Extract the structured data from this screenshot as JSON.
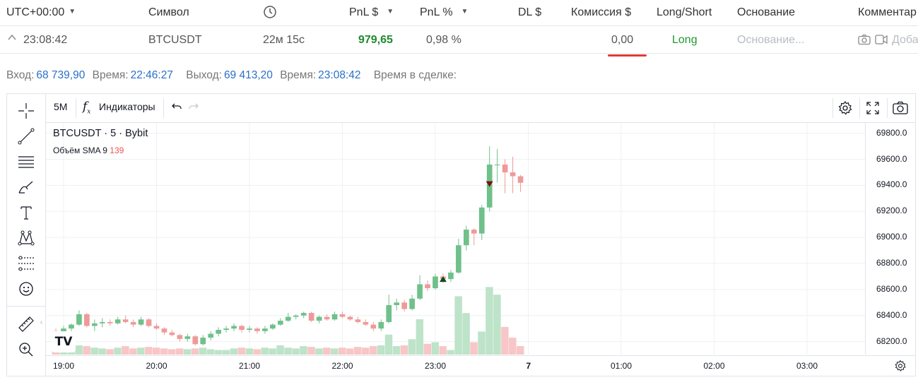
{
  "table": {
    "headers": {
      "time": "UTC+00:00",
      "symbol": "Символ",
      "pnl_usd": "PnL $",
      "pnl_pct": "PnL %",
      "dl": "DL $",
      "commission": "Комиссия $",
      "side": "Long/Short",
      "reason": "Основание",
      "comment": "Комментар"
    },
    "row": {
      "time": "23:08:42",
      "symbol": "BTCUSDT",
      "duration": "22м 15с",
      "pnl_usd": "979,65",
      "pnl_pct": "0,98 %",
      "commission": "0,00",
      "side": "Long",
      "reason_placeholder": "Основание...",
      "comment_placeholder": "Доба"
    }
  },
  "trade_info": {
    "entry_label": "Вход:",
    "entry_price": "68 739,90",
    "entry_time_label": "Время:",
    "entry_time": "22:46:27",
    "exit_label": "Выход:",
    "exit_price": "69 413,20",
    "exit_time_label": "Время:",
    "exit_time": "23:08:42",
    "duration_label": "Время в сделке:"
  },
  "chart_toolbar": {
    "interval": "5M",
    "indicators_label": "Индикаторы"
  },
  "legend": {
    "symbol": "BTCUSDT",
    "interval": "5",
    "exchange": "Bybit",
    "sep": "·",
    "volume_label": "Объём SMA 9",
    "volume_value": "139"
  },
  "colors": {
    "up": "#6fc08a",
    "down": "#ef9a9a",
    "vol_up": "#bde3c9",
    "vol_down": "#f8c6c6",
    "pnl_positive": "#1e8a2e",
    "long": "#1e9a2e",
    "accent_red": "#e53935",
    "info_value": "#2a6fc9"
  },
  "chart_data": {
    "type": "candlestick",
    "symbol": "BTCUSDT",
    "interval": "5",
    "exchange": "Bybit",
    "x_tick_labels": [
      "19:00",
      "20:00",
      "21:00",
      "22:00",
      "23:00",
      "7",
      "01:00",
      "02:00",
      "03:00"
    ],
    "y_tick_labels": [
      "69800.0",
      "69600.0",
      "69400.0",
      "69200.0",
      "69000.0",
      "68800.0",
      "68600.0",
      "68400.0",
      "68200.0"
    ],
    "ylim": [
      68100,
      69880
    ],
    "grid": true,
    "start_time": "18:55",
    "candles": [
      [
        68280,
        68300,
        68250,
        68270,
        40
      ],
      [
        68270,
        68320,
        68250,
        68300,
        30
      ],
      [
        68300,
        68340,
        68280,
        68330,
        35
      ],
      [
        68330,
        68440,
        68320,
        68410,
        60
      ],
      [
        68410,
        68420,
        68310,
        68320,
        55
      ],
      [
        68320,
        68370,
        68280,
        68340,
        45
      ],
      [
        68340,
        68380,
        68310,
        68350,
        40
      ],
      [
        68350,
        68370,
        68320,
        68340,
        35
      ],
      [
        68340,
        68390,
        68330,
        68370,
        45
      ],
      [
        68370,
        68400,
        68340,
        68350,
        55
      ],
      [
        68350,
        68370,
        68310,
        68330,
        40
      ],
      [
        68330,
        68390,
        68320,
        68370,
        45
      ],
      [
        68370,
        68380,
        68310,
        68320,
        50
      ],
      [
        68320,
        68340,
        68290,
        68300,
        45
      ],
      [
        68300,
        68310,
        68250,
        68270,
        40
      ],
      [
        68270,
        68290,
        68240,
        68250,
        35
      ],
      [
        68250,
        68260,
        68200,
        68220,
        40
      ],
      [
        68220,
        68260,
        68200,
        68240,
        35
      ],
      [
        68240,
        68250,
        68170,
        68180,
        40
      ],
      [
        68180,
        68250,
        68170,
        68230,
        45
      ],
      [
        68230,
        68280,
        68210,
        68260,
        35
      ],
      [
        68260,
        68310,
        68240,
        68290,
        30
      ],
      [
        68290,
        68320,
        68270,
        68300,
        30
      ],
      [
        68300,
        68340,
        68280,
        68320,
        40
      ],
      [
        68320,
        68330,
        68270,
        68290,
        45
      ],
      [
        68290,
        68320,
        68270,
        68300,
        40
      ],
      [
        68300,
        68310,
        68260,
        68280,
        35
      ],
      [
        68280,
        68320,
        68260,
        68300,
        45
      ],
      [
        68300,
        68340,
        68290,
        68330,
        40
      ],
      [
        68330,
        68380,
        68320,
        68360,
        60
      ],
      [
        68360,
        68420,
        68350,
        68390,
        45
      ],
      [
        68390,
        68410,
        68370,
        68400,
        40
      ],
      [
        68400,
        68430,
        68380,
        68420,
        55
      ],
      [
        68420,
        68430,
        68350,
        68360,
        50
      ],
      [
        68360,
        68400,
        68340,
        68390,
        40
      ],
      [
        68390,
        68410,
        68360,
        68370,
        45
      ],
      [
        68370,
        68430,
        68360,
        68410,
        40
      ],
      [
        68410,
        68430,
        68380,
        68390,
        45
      ],
      [
        68390,
        68400,
        68360,
        68370,
        40
      ],
      [
        68370,
        68390,
        68340,
        68350,
        50
      ],
      [
        68350,
        68370,
        68320,
        68330,
        45
      ],
      [
        68330,
        68350,
        68280,
        68300,
        55
      ],
      [
        68300,
        68370,
        68280,
        68350,
        60
      ],
      [
        68350,
        68560,
        68340,
        68480,
        130
      ],
      [
        68480,
        68530,
        68440,
        68500,
        55
      ],
      [
        68500,
        68520,
        68430,
        68450,
        60
      ],
      [
        68450,
        68560,
        68440,
        68530,
        100
      ],
      [
        68530,
        68710,
        68520,
        68640,
        230
      ],
      [
        68640,
        68670,
        68590,
        68610,
        70
      ],
      [
        68610,
        68720,
        68600,
        68700,
        80
      ],
      [
        68700,
        68720,
        68650,
        68680,
        55
      ],
      [
        68680,
        68750,
        68660,
        68730,
        30
      ],
      [
        68730,
        68990,
        68720,
        68940,
        380
      ],
      [
        68940,
        69090,
        68900,
        69060,
        270
      ],
      [
        69060,
        69070,
        68940,
        69030,
        80
      ],
      [
        69030,
        69250,
        68980,
        69230,
        150
      ],
      [
        69230,
        69700,
        69200,
        69560,
        440
      ],
      [
        69560,
        69680,
        69420,
        69560,
        390
      ],
      [
        69560,
        69600,
        69340,
        69500,
        180
      ],
      [
        69500,
        69620,
        69340,
        69470,
        110
      ],
      [
        69470,
        69480,
        69350,
        69420,
        55
      ]
    ],
    "markers": [
      {
        "type": "buy",
        "candle": 50
      },
      {
        "type": "sell",
        "candle": 56
      }
    ]
  }
}
